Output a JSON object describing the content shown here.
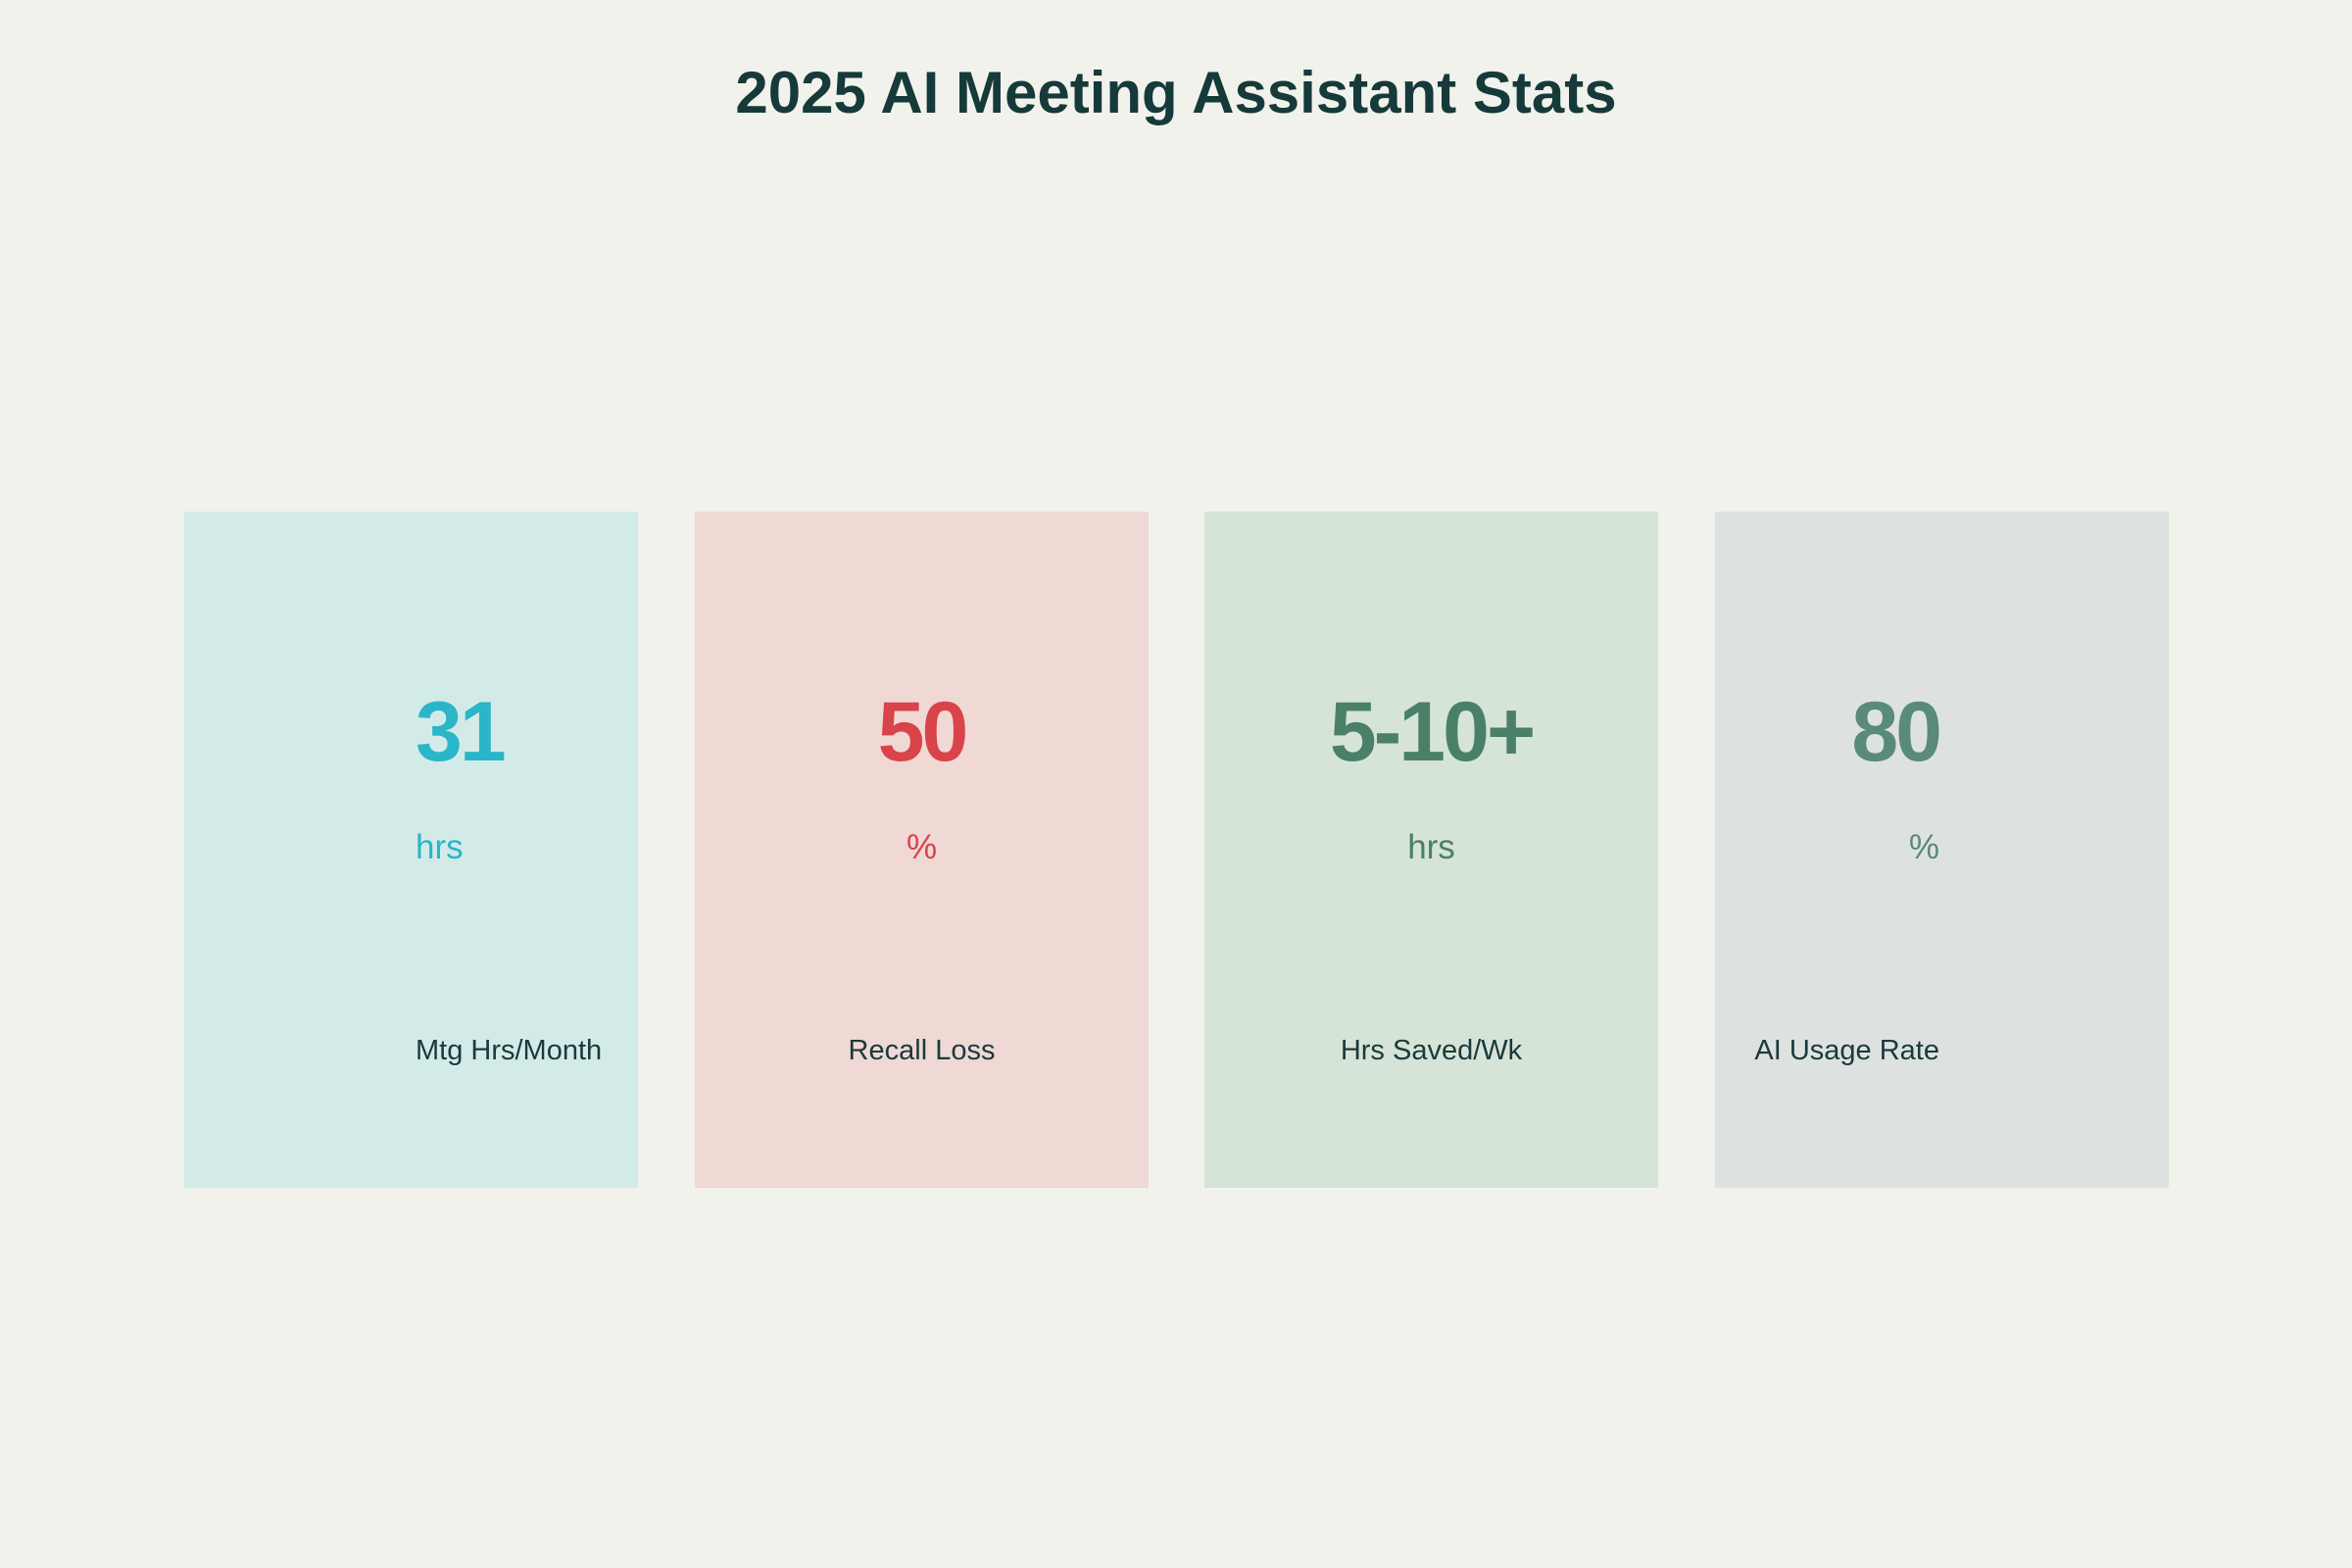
{
  "header": {
    "title": "2025 AI Meeting Assistant Stats"
  },
  "cards": [
    {
      "value": 31,
      "unit": "hrs",
      "label": "Mtg Hrs/Month"
    },
    {
      "value": 50,
      "unit": "%",
      "label": "Recall Loss"
    },
    {
      "value": "5-10+",
      "unit": "hrs",
      "label": "Hrs Saved/Wk"
    },
    {
      "value": 80,
      "unit": "%",
      "label": "AI Usage Rate"
    }
  ]
}
